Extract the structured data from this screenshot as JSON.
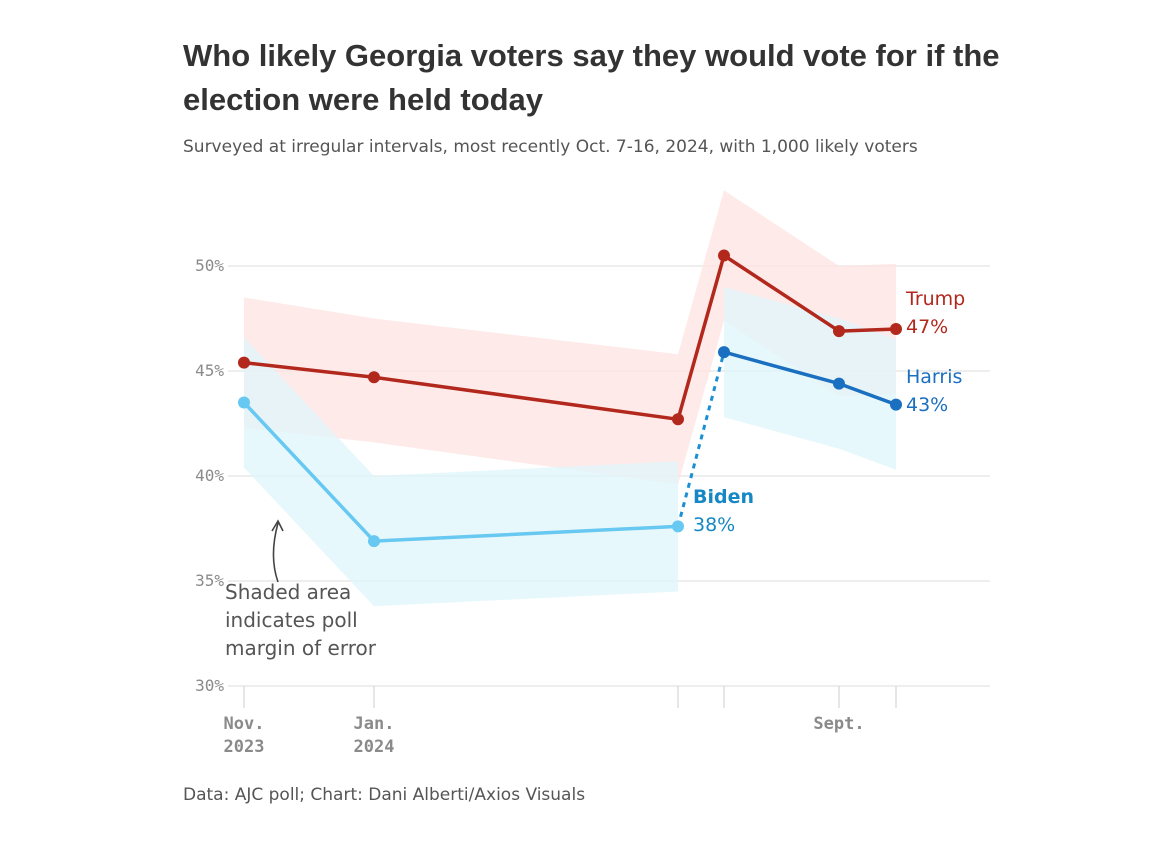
{
  "chart_data": {
    "type": "line",
    "title": "Who likely Georgia voters say they would vote for if the election were held today",
    "subtitle": "Surveyed at irregular intervals, most recently Oct. 7-16, 2024, with 1,000 likely voters",
    "source": "Data: AJC poll; Chart: Dani Alberti/Axios Visuals",
    "ylim": [
      30,
      50
    ],
    "y_ticks": [
      "30%",
      "35%",
      "40%",
      "45%",
      "50%"
    ],
    "x_ticks": [
      {
        "line1": "Nov.",
        "line2": "2023"
      },
      {
        "line1": "Jan.",
        "line2": "2024"
      },
      {
        "line1": "Sept.",
        "line2": ""
      }
    ],
    "grid": true,
    "series": [
      {
        "name": "Trump",
        "color": "#b2281d",
        "band_color": "#fde3e1",
        "x": [
          "2023-11",
          "2024-01",
          "2024-06",
          "2024-07",
          "2024-09",
          "2024-10"
        ],
        "values": [
          45.4,
          44.7,
          42.7,
          50.5,
          46.9,
          47.0
        ],
        "moe_upper": [
          48.5,
          47.5,
          45.8,
          53.6,
          50.0,
          50.1
        ],
        "moe_lower": [
          42.3,
          41.6,
          39.6,
          47.4,
          43.8,
          43.9
        ],
        "label": "Trump",
        "value_label": "47%"
      },
      {
        "name": "Harris",
        "color": "#1a6fc0",
        "band_color": "#dff5fb",
        "x": [
          "2024-07",
          "2024-09",
          "2024-10"
        ],
        "values": [
          45.9,
          44.4,
          43.4
        ],
        "moe_upper": [
          49.0,
          47.5,
          46.5
        ],
        "moe_lower": [
          42.8,
          41.3,
          40.3
        ],
        "label": "Harris",
        "value_label": "43%"
      },
      {
        "name": "Biden",
        "color": "#67c8f1",
        "band_color": "#dff5fb",
        "x": [
          "2023-11",
          "2024-01",
          "2024-06"
        ],
        "values": [
          43.5,
          36.9,
          37.6
        ],
        "moe_upper": [
          46.6,
          40.0,
          40.7
        ],
        "moe_lower": [
          40.4,
          33.8,
          34.5
        ],
        "label": "Biden",
        "value_label": "38%"
      }
    ],
    "annotation": [
      "Shaded area",
      "indicates poll",
      "margin of error"
    ]
  }
}
